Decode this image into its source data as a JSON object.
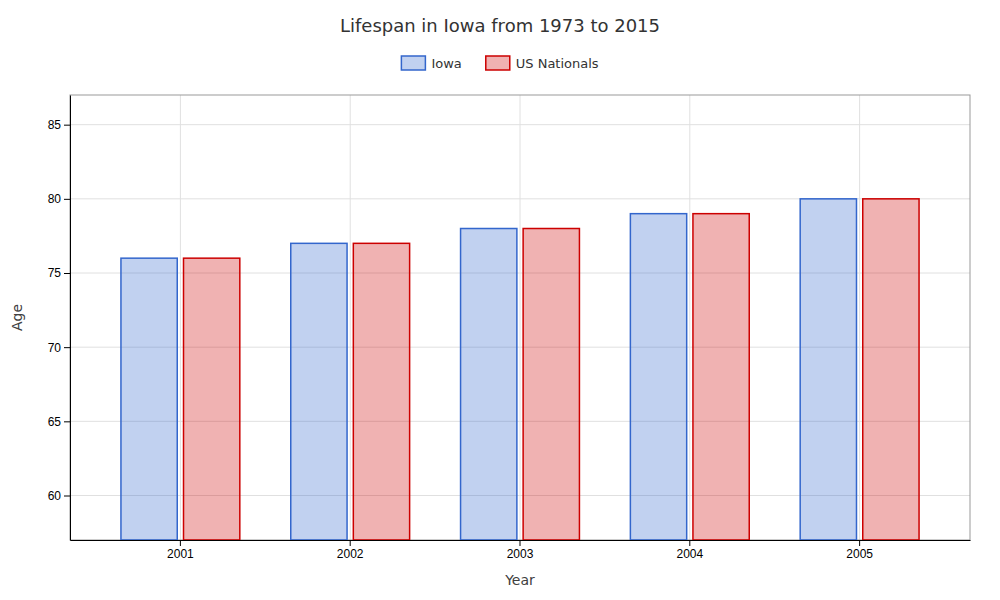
{
  "chart_data": {
    "type": "bar",
    "title": "Lifespan in Iowa from 1973 to 2015",
    "xlabel": "Year",
    "ylabel": "Age",
    "categories": [
      "2001",
      "2002",
      "2003",
      "2004",
      "2005"
    ],
    "series": [
      {
        "name": "Iowa",
        "color": "#3366cc",
        "values": [
          76,
          77,
          78,
          79,
          80
        ]
      },
      {
        "name": "US Nationals",
        "color": "#cc0000",
        "values": [
          76,
          77,
          78,
          79,
          80
        ]
      }
    ],
    "ylim": [
      57,
      87
    ],
    "yticks": [
      60,
      65,
      70,
      75,
      80,
      85
    ],
    "grid": true,
    "legend": "top"
  }
}
